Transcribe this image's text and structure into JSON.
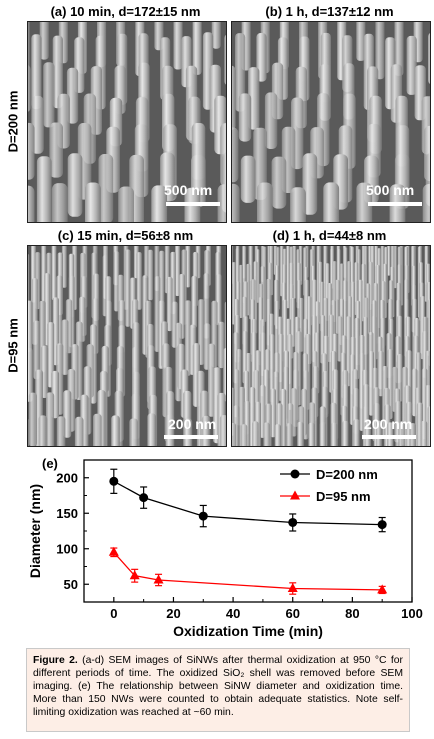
{
  "panels": [
    {
      "title": "(a) 10 min, d=172±15 nm",
      "scale": "500 nm"
    },
    {
      "title": "(b) 1 h, d=137±12 nm",
      "scale": "500 nm"
    },
    {
      "title": "(c) 15 min, d=56±8 nm",
      "scale": "200 nm"
    },
    {
      "title": "(d) 1 h, d=44±8 nm",
      "scale": "200 nm"
    }
  ],
  "row_labels": {
    "top": "D=200 nm",
    "bottom": "D=95 nm"
  },
  "chart_data": {
    "type": "line",
    "panel_label": "(e)",
    "xlabel": "Oxidization Time (min)",
    "ylabel": "Diameter (nm)",
    "xlim": [
      -10,
      100
    ],
    "ylim": [
      25,
      225
    ],
    "xticks": [
      0,
      20,
      40,
      60,
      80,
      100
    ],
    "yticks": [
      50,
      100,
      150,
      200
    ],
    "legend_position": "top-right",
    "series": [
      {
        "name": "D=200 nm",
        "color": "#000000",
        "marker": "circle",
        "x": [
          0,
          10,
          30,
          60,
          90
        ],
        "y": [
          195,
          172,
          146,
          137,
          134
        ],
        "err": [
          17,
          15,
          15,
          12,
          10
        ]
      },
      {
        "name": "D=95 nm",
        "color": "#ff0000",
        "marker": "triangle",
        "x": [
          0,
          7,
          15,
          60,
          90
        ],
        "y": [
          95,
          62,
          56,
          44,
          42
        ],
        "err": [
          6,
          9,
          8,
          8,
          5
        ]
      }
    ]
  },
  "caption": {
    "bold": "Figure 2.",
    "text": "(a-d) SEM images of SiNWs after thermal oxidization at 950 °C for different periods of time. The oxidized SiO₂ shell was removed before SEM imaging. (e) The relationship between SiNW diameter and oxidization time. More than 150 NWs were counted to obtain adequate statistics. Note self-limiting oxidization was reached at ~60 min."
  }
}
